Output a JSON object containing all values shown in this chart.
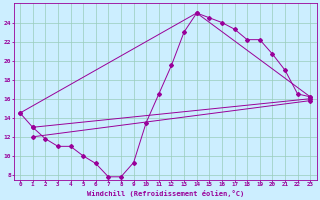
{
  "xlabel": "Windchill (Refroidissement éolien,°C)",
  "bg_color": "#cceeff",
  "line_color": "#990099",
  "grid_color": "#99ccbb",
  "xlim": [
    -0.5,
    23.5
  ],
  "ylim": [
    7.5,
    26.0
  ],
  "yticks": [
    8,
    10,
    12,
    14,
    16,
    18,
    20,
    22,
    24
  ],
  "xticks": [
    0,
    1,
    2,
    3,
    4,
    5,
    6,
    7,
    8,
    9,
    10,
    11,
    12,
    13,
    14,
    15,
    16,
    17,
    18,
    19,
    20,
    21,
    22,
    23
  ],
  "line1": [
    [
      0,
      14.5
    ],
    [
      1,
      13.0
    ],
    [
      2,
      11.8
    ],
    [
      3,
      11.0
    ],
    [
      4,
      11.0
    ],
    [
      5,
      10.0
    ],
    [
      6,
      9.2
    ],
    [
      7,
      7.8
    ],
    [
      8,
      7.8
    ],
    [
      9,
      9.3
    ],
    [
      10,
      13.5
    ],
    [
      11,
      16.5
    ],
    [
      12,
      19.5
    ],
    [
      13,
      23.0
    ],
    [
      14,
      25.0
    ],
    [
      15,
      24.5
    ],
    [
      16,
      24.0
    ],
    [
      17,
      23.3
    ],
    [
      18,
      22.2
    ],
    [
      19,
      22.2
    ],
    [
      20,
      20.7
    ],
    [
      21,
      19.0
    ],
    [
      22,
      16.5
    ],
    [
      23,
      16.2
    ]
  ],
  "line2": [
    [
      0,
      14.5
    ],
    [
      14,
      25.0
    ],
    [
      23,
      16.2
    ]
  ],
  "line3": [
    [
      1,
      13.0
    ],
    [
      23,
      16.0
    ]
  ],
  "line4": [
    [
      1,
      12.0
    ],
    [
      23,
      15.8
    ]
  ]
}
